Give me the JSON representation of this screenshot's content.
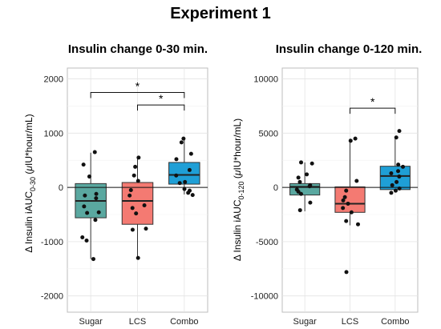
{
  "figure_title": "Experiment 1",
  "colors": {
    "Sugar": "#5aa8a0",
    "LCS": "#f47a72",
    "Combo": "#1f9fd6"
  },
  "chart_data": [
    {
      "type": "box",
      "title": "Insulin change 0-30 min.",
      "ylabel": "Δ Insulin iAUC0-30 (μIU*hour/mL)",
      "ylabel_parts": {
        "pre": "Δ Insulin iAUC",
        "sub": "0-30",
        "post": " (",
        "mu": "μ",
        "unit": "IU*hour/mL)"
      },
      "categories": [
        "Sugar",
        "LCS",
        "Combo"
      ],
      "ylim": [
        -2300,
        2200
      ],
      "yticks": [
        -2000,
        -1000,
        0,
        1000,
        2000
      ],
      "grid": true,
      "boxes": [
        {
          "q1": -560,
          "median": -250,
          "q3": 70,
          "whisker_low": -1320,
          "whisker_high": 640
        },
        {
          "q1": -680,
          "median": -250,
          "q3": 90,
          "whisker_low": -1300,
          "whisker_high": 560
        },
        {
          "q1": 60,
          "median": 230,
          "q3": 460,
          "whisker_low": -130,
          "whisker_high": 910
        }
      ],
      "points": [
        [
          650,
          420,
          200,
          -120,
          -150,
          -200,
          -350,
          -460,
          -470,
          -600,
          -920,
          -980,
          -1320
        ],
        [
          550,
          380,
          220,
          120,
          -50,
          -150,
          -330,
          -380,
          -480,
          -760,
          -780,
          -1300
        ],
        [
          900,
          830,
          620,
          520,
          320,
          220,
          100,
          80,
          -30,
          -60,
          -100,
          -140
        ]
      ],
      "significance": [
        {
          "from": "Sugar",
          "to": "Combo",
          "y": 1750,
          "label": "*"
        },
        {
          "from": "LCS",
          "to": "Combo",
          "y": 1520,
          "label": "*"
        }
      ]
    },
    {
      "type": "box",
      "title": "Insulin change 0-120 min.",
      "ylabel": "Δ Insulin iAUC0-120 (μIU*hour/mL)",
      "ylabel_parts": {
        "pre": "Δ Insulin iAUC",
        "sub": "0-120",
        "post": " (",
        "mu": "μ",
        "unit": "IU*hour/mL)"
      },
      "categories": [
        "Sugar",
        "LCS",
        "Combo"
      ],
      "ylim": [
        -11500,
        11000
      ],
      "yticks": [
        -10000,
        -5000,
        0,
        5000,
        10000
      ],
      "grid": true,
      "boxes": [
        {
          "q1": -700,
          "median": 50,
          "q3": 350,
          "whisker_low": -2200,
          "whisker_high": 2300
        },
        {
          "q1": -2300,
          "median": -1500,
          "q3": 50,
          "whisker_low": -3500,
          "whisker_high": 4500
        },
        {
          "q1": -200,
          "median": 1050,
          "q3": 1950,
          "whisker_low": -400,
          "whisker_high": 4700
        }
      ],
      "points": [
        [
          2300,
          2200,
          1200,
          900,
          500,
          200,
          100,
          -200,
          -400,
          -600,
          -1400,
          -2100
        ],
        [
          4500,
          4300,
          600,
          -300,
          -900,
          -1200,
          -1500,
          -1900,
          -2300,
          -3100,
          -3400,
          -7800
        ],
        [
          5200,
          4600,
          2100,
          1900,
          1500,
          1300,
          1000,
          500,
          200,
          -100,
          -300,
          -500
        ]
      ],
      "significance": [
        {
          "from": "LCS",
          "to": "Combo",
          "y": 7300,
          "label": "*"
        }
      ]
    }
  ]
}
